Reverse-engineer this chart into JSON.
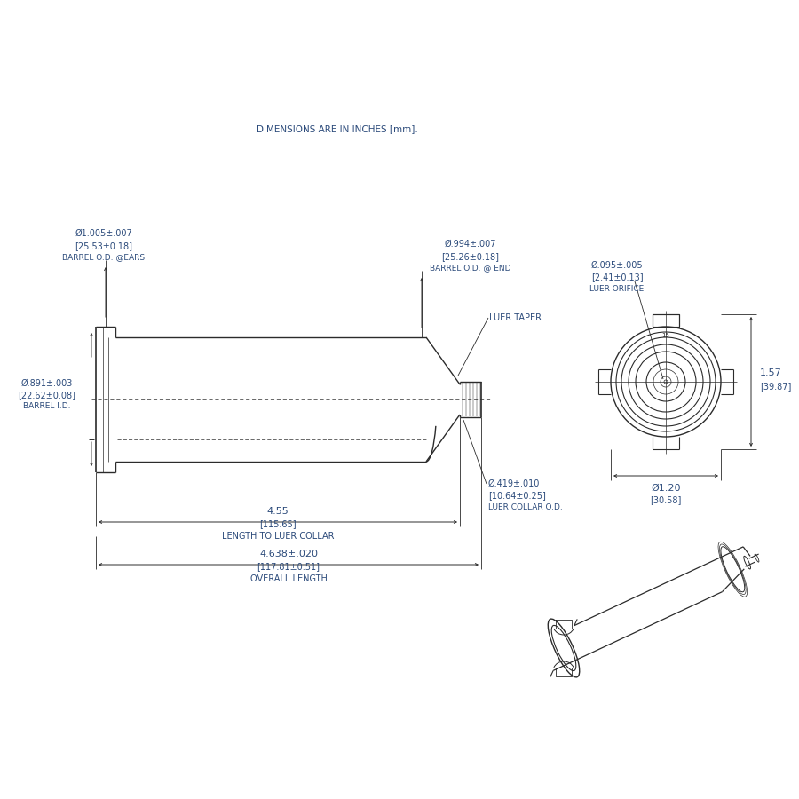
{
  "bg_color": "#ffffff",
  "title_note": "DIMENSIONS ARE IN INCHES [mm].",
  "dim_color": "#2b4a7a",
  "line_color": "#2b2b2b",
  "drawing_line_color": "#2b2b2b",
  "barrel_od_ears_l1": "Ø1.005±.007",
  "barrel_od_ears_l2": "[25.53±0.18]",
  "barrel_od_ears_l3": "BARREL O.D. @EARS",
  "barrel_od_end_l1": "Ø.994±.007",
  "barrel_od_end_l2": "[25.26±0.18]",
  "barrel_od_end_l3": "BARREL O.D. @ END",
  "barrel_id_l1": "Ø.891±.003",
  "barrel_id_l2": "[22.62±0.08]",
  "barrel_id_l3": "BARREL I.D.",
  "len_luer_l1": "4.55",
  "len_luer_l2": "[115.65]",
  "len_luer_l3": "LENGTH TO LUER COLLAR",
  "overall_l1": "4.638±.020",
  "overall_l2": "[117.81±0.51]",
  "overall_l3": "OVERALL LENGTH",
  "luer_orifice_l1": "Ø.095±.005",
  "luer_orifice_l2": "[2.41±0.13]",
  "luer_orifice_l3": "LUER ORIFICE",
  "luer_collar_l1": "Ø.419±.010",
  "luer_collar_l2": "[10.64±0.25]",
  "luer_collar_l3": "LUER COLLAR O.D.",
  "front_od_l1": "Ø1.20",
  "front_od_l2": "[30.58]",
  "front_h_l1": "1.57",
  "front_h_l2": "[39.87]",
  "luer_taper": "LUER TAPER"
}
